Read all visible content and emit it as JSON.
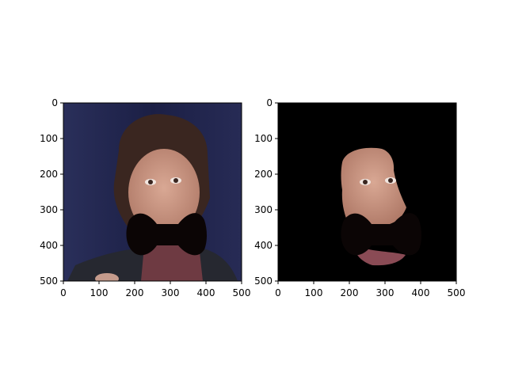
{
  "chart_data": [
    {
      "type": "image",
      "title": "",
      "xlabel": "",
      "ylabel": "",
      "xlim": [
        0,
        500
      ],
      "ylim": [
        500,
        0
      ],
      "xticks": [
        0,
        100,
        200,
        300,
        400,
        500
      ],
      "yticks": [
        0,
        100,
        200,
        300,
        400,
        500
      ],
      "content": "photo-with-mask-overlay",
      "background": "#1e2247",
      "mask_color": "#0b0505"
    },
    {
      "type": "image",
      "title": "",
      "xlabel": "",
      "ylabel": "",
      "xlim": [
        0,
        500
      ],
      "ylim": [
        500,
        0
      ],
      "xticks": [
        0,
        100,
        200,
        300,
        400,
        500
      ],
      "yticks": [
        0,
        100,
        200,
        300,
        400,
        500
      ],
      "content": "segmented-face-with-mask",
      "background": "#000000",
      "mask_color": "#0b0505"
    }
  ]
}
